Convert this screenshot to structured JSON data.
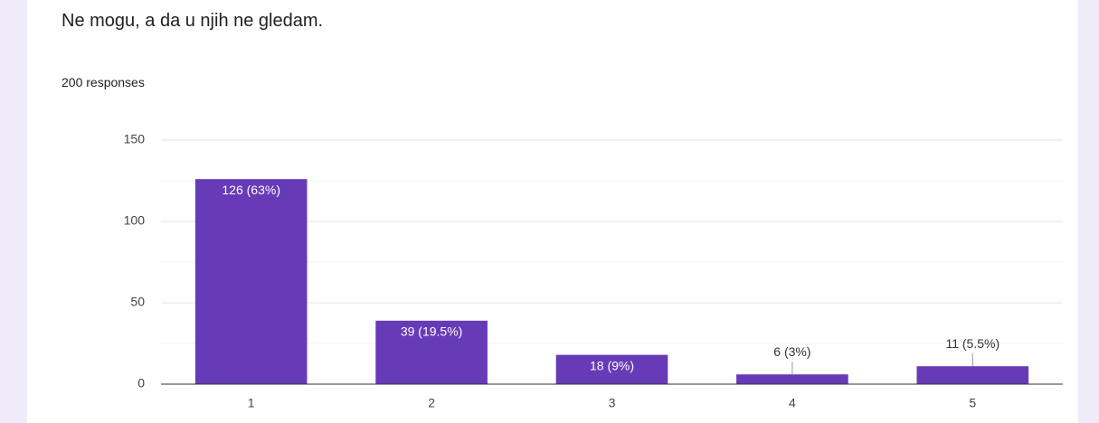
{
  "header": {
    "title": "Ne mogu, a da u njih ne gledam.",
    "responses": "200 responses"
  },
  "chart_data": {
    "type": "bar",
    "categories": [
      "1",
      "2",
      "3",
      "4",
      "5"
    ],
    "values": [
      126,
      39,
      18,
      6,
      11
    ],
    "value_labels": [
      "126 (63%)",
      "39 (19.5%)",
      "18 (9%)",
      "6 (3%)",
      "11 (5.5%)"
    ],
    "color": "#673ab7",
    "ylim": [
      0,
      150
    ],
    "yticks": [
      0,
      50,
      100,
      150
    ],
    "grid": true
  }
}
